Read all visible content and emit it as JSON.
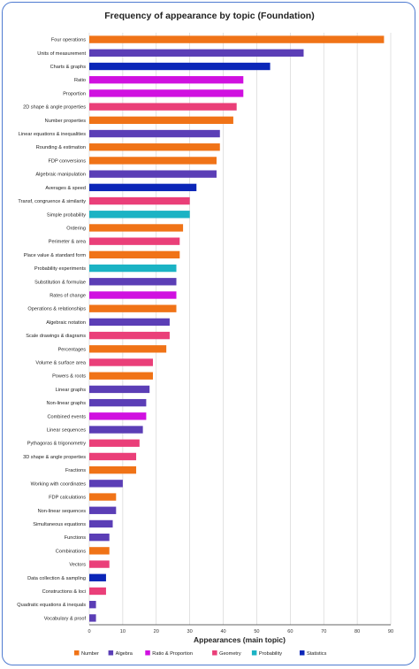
{
  "chart_data": {
    "type": "bar",
    "orientation": "horizontal",
    "title": "Frequency of appearance by topic (Foundation)",
    "xlabel": "Appearances (main topic)",
    "ylabel": "",
    "xlim": [
      0,
      90
    ],
    "xticks": [
      0,
      10,
      20,
      30,
      40,
      50,
      60,
      70,
      80,
      90
    ],
    "grid": "vertical",
    "legend_position": "bottom",
    "legend": [
      {
        "name": "Number",
        "color": "#f07317"
      },
      {
        "name": "Algebra",
        "color": "#5b3eb6"
      },
      {
        "name": "Ratio & Proportion",
        "color": "#d010e0"
      },
      {
        "name": "Geometry",
        "color": "#ea3f79"
      },
      {
        "name": "Probability",
        "color": "#1bb3c4"
      },
      {
        "name": "Statistics",
        "color": "#0b26b8"
      }
    ],
    "bars": [
      {
        "label": "Four operations",
        "value": 88,
        "group": "Number"
      },
      {
        "label": "Units of measurement",
        "value": 64,
        "group": "Algebra"
      },
      {
        "label": "Charts & graphs",
        "value": 54,
        "group": "Statistics"
      },
      {
        "label": "Ratio",
        "value": 46,
        "group": "Ratio & Proportion"
      },
      {
        "label": "Proportion",
        "value": 46,
        "group": "Ratio & Proportion"
      },
      {
        "label": "2D shape & angle properties",
        "value": 44,
        "group": "Geometry"
      },
      {
        "label": "Number properties",
        "value": 43,
        "group": "Number"
      },
      {
        "label": "Linear equations & inequalities",
        "value": 39,
        "group": "Algebra"
      },
      {
        "label": "Rounding & estimation",
        "value": 39,
        "group": "Number"
      },
      {
        "label": "FDP conversions",
        "value": 38,
        "group": "Number"
      },
      {
        "label": "Algebraic manipulation",
        "value": 38,
        "group": "Algebra"
      },
      {
        "label": "Averages & speed",
        "value": 32,
        "group": "Statistics"
      },
      {
        "label": "Transf, congruence & similarity",
        "value": 30,
        "group": "Geometry"
      },
      {
        "label": "Simple probability",
        "value": 30,
        "group": "Probability"
      },
      {
        "label": "Ordering",
        "value": 28,
        "group": "Number"
      },
      {
        "label": "Perimeter & area",
        "value": 27,
        "group": "Geometry"
      },
      {
        "label": "Place value & standard form",
        "value": 27,
        "group": "Number"
      },
      {
        "label": "Probability experiments",
        "value": 26,
        "group": "Probability"
      },
      {
        "label": "Substitution & formulae",
        "value": 26,
        "group": "Algebra"
      },
      {
        "label": "Rates of change",
        "value": 26,
        "group": "Ratio & Proportion"
      },
      {
        "label": "Operations & relationships",
        "value": 26,
        "group": "Number"
      },
      {
        "label": "Algebraic notation",
        "value": 24,
        "group": "Algebra"
      },
      {
        "label": "Scale drawings & diagrams",
        "value": 24,
        "group": "Geometry"
      },
      {
        "label": "Percentages",
        "value": 23,
        "group": "Number"
      },
      {
        "label": "Volume & surface area",
        "value": 19,
        "group": "Geometry"
      },
      {
        "label": "Powers & roots",
        "value": 19,
        "group": "Number"
      },
      {
        "label": "Linear graphs",
        "value": 18,
        "group": "Algebra"
      },
      {
        "label": "Non-linear graphs",
        "value": 17,
        "group": "Algebra"
      },
      {
        "label": "Combined events",
        "value": 17,
        "group": "Ratio & Proportion"
      },
      {
        "label": "Linear sequences",
        "value": 16,
        "group": "Algebra"
      },
      {
        "label": "Pythagoras & trigonometry",
        "value": 15,
        "group": "Geometry"
      },
      {
        "label": "3D shape & angle properties",
        "value": 14,
        "group": "Geometry"
      },
      {
        "label": "Fractions",
        "value": 14,
        "group": "Number"
      },
      {
        "label": "Working with coordinates",
        "value": 10,
        "group": "Algebra"
      },
      {
        "label": "FDP calculations",
        "value": 8,
        "group": "Number"
      },
      {
        "label": "Non-linear sequences",
        "value": 8,
        "group": "Algebra"
      },
      {
        "label": "Simultaneous equations",
        "value": 7,
        "group": "Algebra"
      },
      {
        "label": "Functions",
        "value": 6,
        "group": "Algebra"
      },
      {
        "label": "Combinations",
        "value": 6,
        "group": "Number"
      },
      {
        "label": "Vectors",
        "value": 6,
        "group": "Geometry"
      },
      {
        "label": "Data collection & sampling",
        "value": 5,
        "group": "Statistics"
      },
      {
        "label": "Constructions & loci",
        "value": 5,
        "group": "Geometry"
      },
      {
        "label": "Quadratic equations & inequals",
        "value": 2,
        "group": "Algebra"
      },
      {
        "label": "Vocabulary & proof",
        "value": 2,
        "group": "Algebra"
      }
    ]
  }
}
